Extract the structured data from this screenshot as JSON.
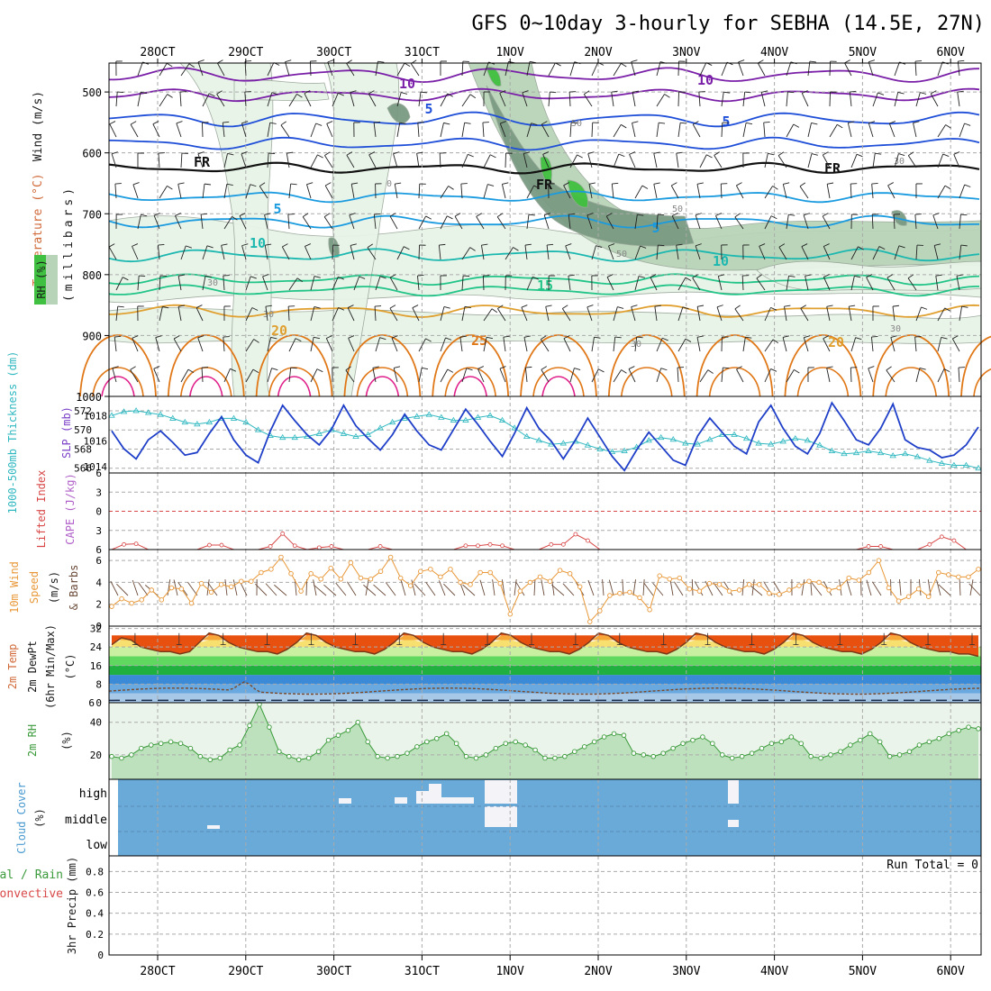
{
  "title": "GFS 0~10day 3-hourly for SEBHA (14.5E, 27N)",
  "dates": [
    "28OCT",
    "29OCT",
    "30OCT",
    "31OCT",
    "1NOV",
    "2NOV",
    "3NOV",
    "4NOV",
    "5NOV",
    "6NOV"
  ],
  "colors": {
    "grid": "#aaaaaa",
    "temp_purple": "#7a1fa8",
    "temp_blue": "#1f4fd8",
    "temp_lightblue": "#1a9be0",
    "temp_teal": "#1cb8b0",
    "temp_green": "#22c488",
    "temp_orange": "#e0a030",
    "temp_darkorange": "#e07818",
    "temp_magenta": "#e0208a",
    "rh_light": "#e8f4e8",
    "rh_mid": "#b8d4b8",
    "rh_dark": "#7a9a82",
    "rh_green": "#40c040",
    "slp": "#1f3fc8",
    "thickness": "#30b8c0",
    "lifted": "#d84848",
    "wind_speed": "#e89838",
    "barb": "#6a4a38",
    "rh2m_line": "#3a9a3a",
    "rh2m_fill": "#a8d8a8",
    "cloud": "#6aaad8",
    "cloud_gap": "#f4f4f8"
  },
  "panels": {
    "upper": {
      "label_wind": "Wind (m/s)",
      "label_temp": "Temperature (°C)",
      "label_rh": "RH (%)",
      "ylabel": "(millibars)",
      "ticks": [
        "500",
        "600",
        "700",
        "800",
        "900",
        "1000"
      ],
      "contour_labels": [
        "10",
        "10",
        "5",
        "5",
        "FR",
        "FR",
        "FR",
        "5",
        "5",
        "10",
        "10",
        "15",
        "20",
        "20",
        "25",
        "30",
        "30",
        "30",
        "30",
        "30",
        "50",
        "50",
        "50",
        "0"
      ]
    },
    "slp": {
      "label_thk": "1000-500mb Thickness (dm)",
      "label_slp": "SLP (mb)",
      "ticks_thk": [
        "572",
        "570",
        "568",
        "566"
      ],
      "ticks_slp": [
        "1018",
        "1016",
        "1014"
      ]
    },
    "cape": {
      "label_li": "Lifted Index",
      "label_cape": "CAPE (J/kg)",
      "ticks": [
        "6",
        "3",
        "0",
        "3",
        "6"
      ]
    },
    "wind10": {
      "label1": "10m Wind",
      "label2": "Speed",
      "label3": "(m/s)",
      "label4": "& Barbs",
      "ticks": [
        "6",
        "4",
        "2",
        "0"
      ]
    },
    "temp2m": {
      "label1": "2m Temp",
      "label2": "2m DewPt",
      "label3": "(6hr Min/Max)",
      "label4": "(°C)",
      "ticks": [
        "32",
        "24",
        "16",
        "8",
        "0"
      ],
      "ticks_b": [
        "6"
      ]
    },
    "rh2m": {
      "label1": "2m RH",
      "label2": "(%)",
      "ticks": [
        "40",
        "20"
      ]
    },
    "cloud": {
      "label1": "Cloud Cover",
      "label2": "(%)",
      "levels": [
        "high",
        "middle",
        "low"
      ]
    },
    "precip": {
      "label1": "Total / Rain",
      "label2": "Convective",
      "label3": "3hr Precip (mm)",
      "ticks": [
        "0.8",
        "0.6",
        "0.4",
        "0.2",
        "0"
      ],
      "run_total": "Run Total = 0"
    }
  },
  "chart_data": [
    {
      "type": "line",
      "name": "slp",
      "ylabel": "SLP (mb)",
      "ylim": [
        1013.5,
        1019.5
      ],
      "values": [
        1016.8,
        1015.4,
        1014.6,
        1016.1,
        1016.8,
        1015.9,
        1014.9,
        1015.1,
        1016.6,
        1017.9,
        1016.1,
        1014.9,
        1014.3,
        1016.8,
        1018.8,
        1017.6,
        1016.5,
        1015.7,
        1016.9,
        1018.8,
        1017.2,
        1016.2,
        1015.3,
        1016.5,
        1018.1,
        1016.8,
        1015.7,
        1015.3,
        1016.9,
        1018.5,
        1017.3,
        1016.0,
        1014.8,
        1016.6,
        1018.6,
        1017.0,
        1016.0,
        1014.6,
        1016.1,
        1017.8,
        1016.3,
        1014.8,
        1013.7,
        1015.3,
        1016.7,
        1015.6,
        1014.5,
        1014.1,
        1016.4,
        1017.8,
        1016.7,
        1015.6,
        1015.0,
        1017.5,
        1018.8,
        1017.0,
        1015.6,
        1015.0,
        1016.6,
        1019.0,
        1017.6,
        1016.1,
        1015.7,
        1017.0,
        1018.9,
        1016.1,
        1015.5,
        1015.3,
        1014.7,
        1014.9,
        1015.7,
        1017.1
      ]
    },
    {
      "type": "line",
      "name": "thickness",
      "ylabel": "1000-500mb Thickness (dm)",
      "ylim": [
        565.5,
        573.5
      ],
      "values": [
        571.5,
        571.9,
        572.0,
        571.8,
        571.6,
        571.2,
        570.8,
        570.6,
        570.8,
        571.2,
        571.2,
        570.8,
        570.0,
        569.4,
        569.2,
        569.2,
        569.3,
        569.6,
        570.0,
        569.6,
        569.3,
        569.5,
        570.2,
        570.8,
        571.2,
        571.4,
        571.6,
        571.3,
        571.0,
        571.0,
        571.3,
        571.5,
        571.0,
        570.2,
        569.3,
        568.9,
        568.5,
        568.6,
        568.8,
        568.4,
        568.0,
        567.7,
        567.8,
        568.2,
        568.9,
        569.2,
        569.0,
        568.6,
        568.5,
        569.0,
        569.5,
        569.5,
        569.1,
        568.6,
        568.5,
        568.8,
        569.1,
        568.9,
        568.4,
        567.8,
        567.5,
        567.6,
        567.8,
        567.6,
        567.3,
        567.5,
        567.2,
        566.8,
        566.5,
        566.3,
        566.3,
        566.0
      ]
    },
    {
      "type": "line",
      "name": "wind_speed_10m",
      "ylabel": "(m/s)",
      "ylim": [
        0,
        7
      ],
      "values": [
        1.8,
        2.5,
        2.1,
        2.4,
        3.3,
        2.4,
        3.5,
        3.4,
        2.1,
        3.9,
        3.1,
        3.8,
        3.6,
        4.1,
        4.1,
        4.9,
        5.2,
        6.3,
        4.8,
        3.2,
        4.8,
        4.3,
        5.3,
        4.3,
        5.8,
        4.4,
        4.3,
        5.0,
        6.3,
        4.4,
        3.7,
        5.0,
        5.2,
        4.5,
        5.2,
        4.0,
        3.8,
        4.9,
        4.9,
        3.9,
        1.1,
        3.2,
        4.0,
        4.5,
        4.1,
        5.1,
        4.8,
        3.6,
        0.4,
        1.4,
        2.8,
        3.0,
        3.1,
        2.6,
        1.5,
        4.6,
        4.3,
        4.4,
        3.4,
        3.2,
        3.9,
        3.8,
        3.2,
        3.3,
        3.8,
        3.8,
        3.0,
        2.9,
        3.3,
        3.7,
        4.1,
        4.0,
        3.3,
        3.5,
        4.4,
        4.2,
        4.9,
        6.0,
        3.5,
        2.3,
        2.7,
        3.4,
        2.7,
        4.9,
        4.7,
        4.5,
        4.5,
        5.2
      ]
    },
    {
      "type": "line",
      "name": "temp_2m",
      "ylabel": "(°C)",
      "ylim": [
        0,
        33
      ],
      "values": [
        25,
        28,
        27,
        24,
        23,
        22,
        22,
        21,
        22,
        26,
        30,
        29,
        26,
        24,
        23,
        22,
        22,
        21,
        23,
        26,
        30,
        29,
        26,
        24,
        23,
        22,
        22,
        21,
        23,
        26,
        30,
        29,
        26,
        24,
        23,
        22,
        22,
        21,
        23,
        26,
        30,
        29,
        26,
        24,
        23,
        22,
        22,
        21,
        23,
        26,
        30,
        29,
        26,
        24,
        23,
        22,
        22,
        21,
        23,
        26,
        30,
        29,
        26,
        24,
        23,
        22,
        22,
        21,
        23,
        26,
        30,
        29,
        26,
        24,
        23,
        22,
        22,
        21,
        23,
        26,
        30,
        29,
        26,
        24,
        23,
        22,
        22,
        21,
        21,
        20
      ]
    },
    {
      "type": "area",
      "name": "rh_2m",
      "ylabel": "(%)",
      "ylim": [
        5,
        52
      ],
      "values": [
        19,
        18,
        20,
        24,
        26,
        27,
        28,
        27,
        24,
        19,
        17,
        18,
        23,
        26,
        38,
        51,
        37,
        22,
        19,
        17,
        18,
        22,
        29,
        32,
        35,
        40,
        28,
        19,
        18,
        19,
        21,
        25,
        28,
        30,
        33,
        27,
        19,
        18,
        20,
        24,
        27,
        28,
        26,
        23,
        18,
        18,
        19,
        22,
        25,
        28,
        31,
        33,
        32,
        21,
        20,
        19,
        21,
        24,
        27,
        29,
        31,
        27,
        20,
        18,
        19,
        21,
        24,
        27,
        28,
        31,
        27,
        19,
        18,
        20,
        22,
        26,
        29,
        33,
        28,
        19,
        20,
        22,
        26,
        28,
        30,
        33,
        35,
        37,
        36
      ]
    },
    {
      "type": "line",
      "name": "lifted_index",
      "ylabel": "Lifted Index",
      "ylim": [
        -6,
        6
      ],
      "values": [
        6,
        5.2,
        5.1,
        6,
        6,
        6,
        6,
        6,
        5.3,
        5.3,
        6,
        6,
        6,
        5.5,
        3.5,
        5.4,
        6,
        5.7,
        5.5,
        6,
        6,
        6,
        5.5,
        6,
        6,
        6,
        6,
        6,
        6,
        5.4,
        5.4,
        5.2,
        5.4,
        6,
        6,
        6,
        5.2,
        5.2,
        3.6,
        4.6,
        6,
        6,
        6,
        6,
        6,
        6,
        6,
        6,
        6,
        6,
        6,
        6,
        6,
        6,
        6,
        6,
        6,
        6,
        6,
        6,
        6,
        6,
        5.5,
        5.5,
        6,
        6,
        6,
        5.2,
        4.0,
        4.6,
        6,
        6
      ]
    },
    {
      "type": "table",
      "name": "precip_3hr",
      "ylabel": "3hr Precip (mm)",
      "ylim": [
        0,
        0.95
      ],
      "values": [
        0
      ]
    }
  ]
}
